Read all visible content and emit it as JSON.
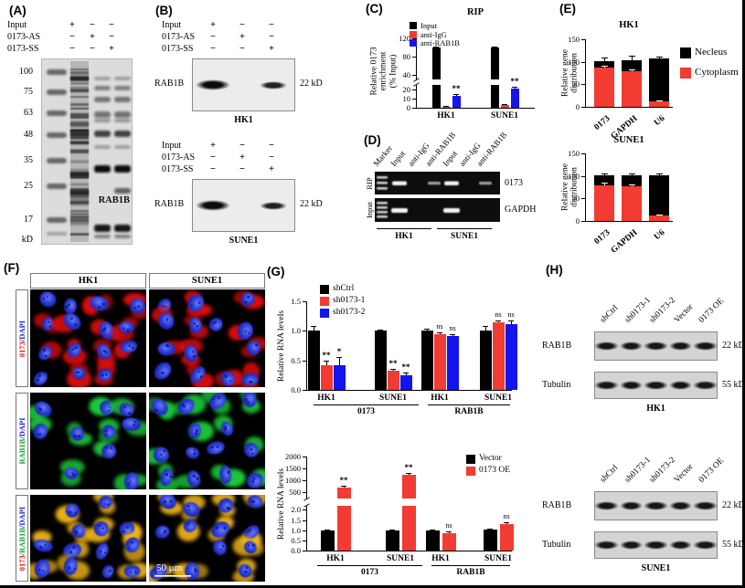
{
  "colors": {
    "black": "#000000",
    "red": "#f23b32",
    "blue": "#1414f0",
    "green": "#1fc93a",
    "yellow": "#f0b418",
    "nucleus_blue": "#2b3bd8"
  },
  "panelA": {
    "label": "(A)",
    "conditions": [
      {
        "name": "Input",
        "signs": [
          "+",
          "−",
          "−"
        ]
      },
      {
        "name": "0173-AS",
        "signs": [
          "−",
          "+",
          "−"
        ]
      },
      {
        "name": "0173-SS",
        "signs": [
          "−",
          "−",
          "+"
        ]
      }
    ],
    "mw_ticks": [
      "100",
      "75",
      "63",
      "48",
      "35",
      "25",
      "17"
    ],
    "kd": "kD",
    "band_label": "RAB1B"
  },
  "panelB": {
    "label": "(B)",
    "conditions": [
      {
        "name": "Input",
        "signs": [
          "+",
          "−",
          "−"
        ]
      },
      {
        "name": "0173-AS",
        "signs": [
          "−",
          "+",
          "−"
        ]
      },
      {
        "name": "0173-SS",
        "signs": [
          "−",
          "−",
          "+"
        ]
      }
    ],
    "blots": [
      {
        "cell": "HK1",
        "protein": "RAB1B",
        "mw": "22 kD"
      },
      {
        "cell": "SUNE1",
        "protein": "RAB1B",
        "mw": "22 kD"
      }
    ]
  },
  "panelC": {
    "label": "(C)"
  },
  "panelD": {
    "label": "(D)",
    "lane_labels": [
      "Marker",
      "Input",
      "anti-IgG",
      "anti-RAB1B",
      "Input",
      "anti-IgG",
      "anti-RAB1B"
    ],
    "row_labels": [
      "RIP",
      "Input"
    ],
    "target_labels": [
      "0173",
      "GAPDH"
    ],
    "cell_labels": [
      "HK1",
      "SUNE1"
    ]
  },
  "panelE": {
    "label": "(E)"
  },
  "panelF": {
    "label": "(F)",
    "col_headers": [
      "HK1",
      "SUNE1"
    ],
    "row_labels": [
      [
        {
          "text": "0173",
          "color": "#e01515"
        },
        {
          "text": "/DAPI",
          "color": "#1a1ae0"
        }
      ],
      [
        {
          "text": "RAB1B",
          "color": "#14a02a"
        },
        {
          "text": "/DAPI",
          "color": "#1a1ae0"
        }
      ],
      [
        {
          "text": "0173",
          "color": "#e01515"
        },
        {
          "text": "/RAB1B",
          "color": "#14a02a"
        },
        {
          "text": "/DAPI",
          "color": "#1a1ae0"
        }
      ]
    ],
    "scale_bar": "50 μm"
  },
  "panelG": {
    "label": "(G)"
  },
  "panelH": {
    "label": "(H)",
    "lane_labels": [
      "shCtrl",
      "sh0173-1",
      "sh0173-2",
      "Vector",
      "0173 OE"
    ],
    "blots": [
      {
        "cell": "HK1",
        "rows": [
          {
            "protein": "RAB1B",
            "mw": "22 kD"
          },
          {
            "protein": "Tubulin",
            "mw": "55 kD"
          }
        ]
      },
      {
        "cell": "SUNE1",
        "rows": [
          {
            "protein": "RAB1B",
            "mw": "22 kD"
          },
          {
            "protein": "Tubulin",
            "mw": "55 kD"
          }
        ]
      }
    ]
  },
  "chart_data": [
    {
      "id": "rip",
      "type": "bar",
      "title": "RIP",
      "ylabel": "Relative 0173 enrichment\n(% Input)",
      "categories": [
        "HK1",
        "SUNE1"
      ],
      "series": [
        {
          "name": "Input",
          "color": "#000000",
          "values": [
            100,
            100
          ],
          "errors": [
            3,
            2
          ],
          "sig": [
            "",
            ""
          ]
        },
        {
          "name": "anti-IgG",
          "color": "#f23b32",
          "values": [
            1.5,
            3
          ],
          "errors": [
            0.6,
            1
          ],
          "sig": [
            "",
            ""
          ]
        },
        {
          "name": "anti-RAB1B",
          "color": "#1414f0",
          "values": [
            13,
            21
          ],
          "errors": [
            2,
            2
          ],
          "sig": [
            "**",
            "**"
          ]
        }
      ],
      "axis_break": {
        "lower_max": 25,
        "lower_ticks": [
          "0",
          "10",
          "20"
        ],
        "upper_min": 30,
        "upper_max": 130,
        "upper_ticks": [
          "40",
          "80",
          "120"
        ]
      },
      "legend_position": "top-left"
    },
    {
      "id": "dist-hk1",
      "type": "stacked-bar",
      "title": "HK1",
      "ylabel": "Relative gene distribution",
      "categories": [
        "0173",
        "GAPDH",
        "U6"
      ],
      "series": [
        {
          "name": "Cytoplasm",
          "color": "#f23b32",
          "values": [
            87,
            80,
            13
          ],
          "errors": [
            5,
            4,
            2
          ]
        },
        {
          "name": "Necleus",
          "color": "#000000",
          "values": [
            15,
            24,
            95
          ],
          "errors": [
            7,
            10,
            4
          ]
        }
      ],
      "legend_series": [
        "Necleus",
        "Cytoplasm"
      ],
      "ylim": [
        0,
        150
      ],
      "yticks": [
        "0",
        "50",
        "100",
        "150"
      ],
      "legend_position": "right"
    },
    {
      "id": "dist-sune1",
      "type": "stacked-bar",
      "title": "SUNE1",
      "ylabel": "Relative gene distribution",
      "categories": [
        "0173",
        "GAPDH",
        "U6"
      ],
      "series": [
        {
          "name": "Cytoplasm",
          "color": "#f23b32",
          "values": [
            80,
            77,
            13
          ],
          "errors": [
            5,
            4,
            2
          ]
        },
        {
          "name": "Necleus",
          "color": "#000000",
          "values": [
            22,
            25,
            89
          ],
          "errors": [
            4,
            3,
            3
          ]
        }
      ],
      "ylim": [
        0,
        150
      ],
      "yticks": [
        "0",
        "50",
        "100",
        "150"
      ]
    },
    {
      "id": "knockdown",
      "type": "bar",
      "ylabel": "Relative RNA levels",
      "categories": [
        "HK1",
        "SUNE1",
        "HK1",
        "SUNE1"
      ],
      "group_labels": [
        {
          "label": "0173",
          "span": [
            0,
            1
          ]
        },
        {
          "label": "RAB1B",
          "span": [
            2,
            3
          ]
        }
      ],
      "series": [
        {
          "name": "shCtrl",
          "color": "#000000",
          "values": [
            1.0,
            1.0,
            1.0,
            1.0
          ],
          "errors": [
            0.08,
            0.02,
            0.03,
            0.08
          ],
          "sig": [
            "",
            "",
            "",
            ""
          ]
        },
        {
          "name": "sh0173-1",
          "color": "#f23b32",
          "values": [
            0.42,
            0.33,
            0.95,
            1.15
          ],
          "errors": [
            0.07,
            0.03,
            0.03,
            0.03
          ],
          "sig": [
            "**",
            "**",
            "ns",
            "ns"
          ]
        },
        {
          "name": "sh0173-2",
          "color": "#1414f0",
          "values": [
            0.42,
            0.25,
            0.91,
            1.12
          ],
          "errors": [
            0.13,
            0.04,
            0.04,
            0.05
          ],
          "sig": [
            "*",
            "**",
            "ns",
            "ns"
          ]
        }
      ],
      "ylim": [
        0,
        1.5
      ],
      "yticks": [
        "0.0",
        "0.5",
        "1.0",
        "1.5"
      ],
      "legend_position": "top-left"
    },
    {
      "id": "overexpression",
      "type": "bar",
      "ylabel": "Relative RNA levels",
      "categories": [
        "HK1",
        "SUNE1",
        "HK1",
        "SUNE1"
      ],
      "group_labels": [
        {
          "label": "0173",
          "span": [
            0,
            1
          ]
        },
        {
          "label": "RAB1B",
          "span": [
            2,
            3
          ]
        }
      ],
      "series": [
        {
          "name": "Vector",
          "color": "#000000",
          "values": [
            1.0,
            1.0,
            1.0,
            1.05
          ],
          "errors": [
            0.05,
            0.03,
            0.04,
            0.03
          ],
          "sig": [
            "",
            "",
            "",
            ""
          ]
        },
        {
          "name": "0173 OE",
          "color": "#f23b32",
          "values": [
            700,
            1250,
            0.87,
            1.3
          ],
          "errors": [
            70,
            80,
            0.06,
            0.09
          ],
          "sig": [
            "**",
            "**",
            "ns",
            "ns"
          ]
        }
      ],
      "axis_break": {
        "lower_max": 2.2,
        "lower_ticks": [
          "0.0",
          "0.5",
          "1.0",
          "1.5",
          "2.0"
        ],
        "upper_min": 250,
        "upper_max": 2000,
        "upper_ticks": [
          "500",
          "1000",
          "1500",
          "2000"
        ]
      },
      "legend_position": "top-right"
    }
  ]
}
